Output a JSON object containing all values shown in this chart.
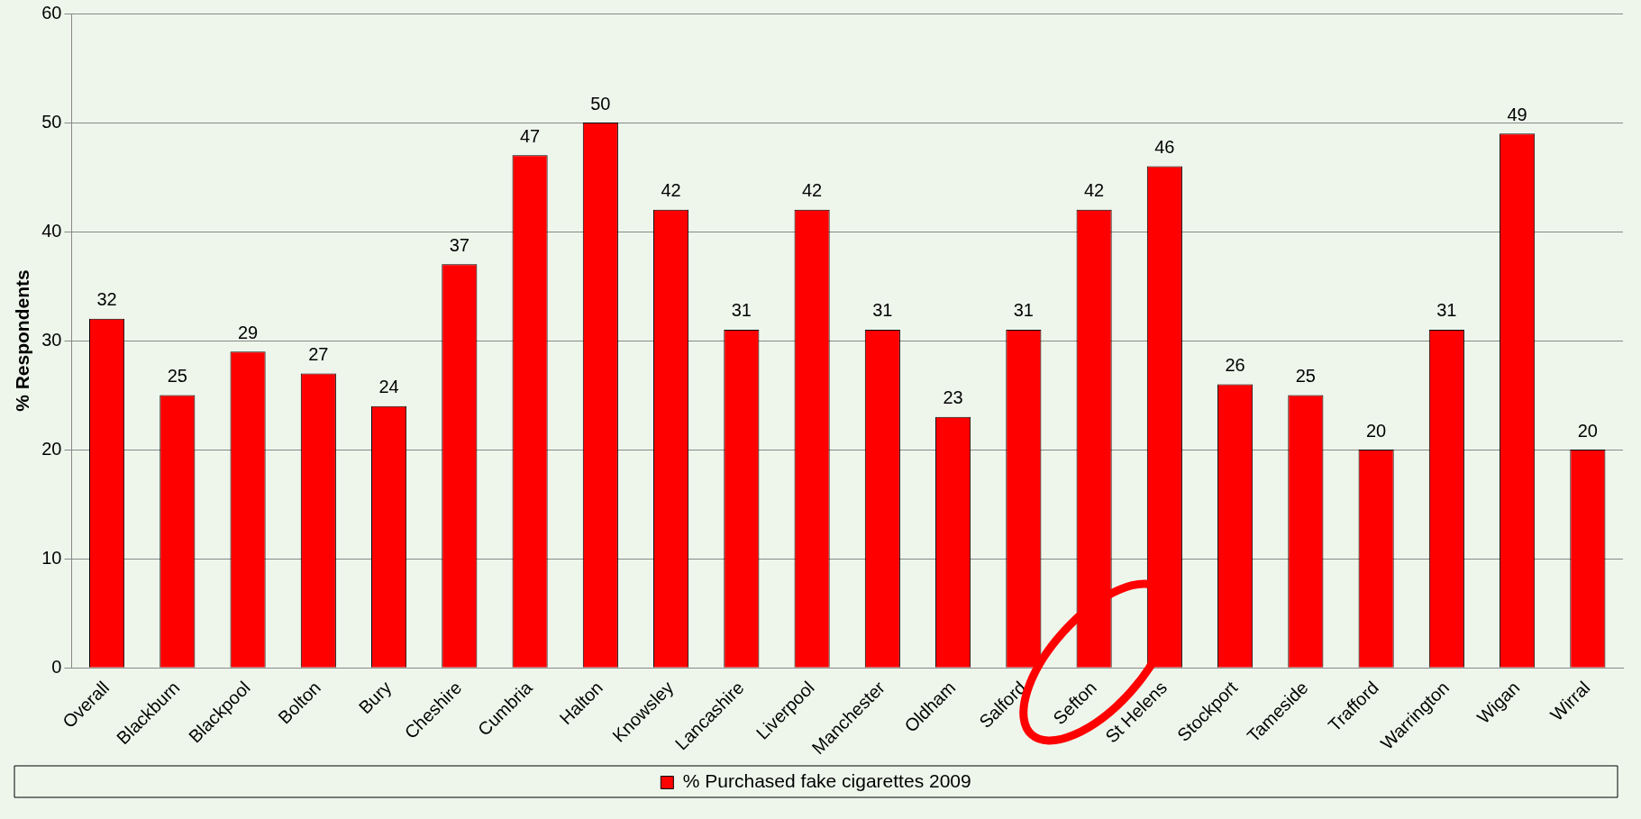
{
  "chart_data": {
    "type": "bar",
    "ylabel": "% Respondents",
    "categories": [
      "Overall",
      "Blackburn",
      "Blackpool",
      "Bolton",
      "Bury",
      "Cheshire",
      "Cumbria",
      "Halton",
      "Knowsley",
      "Lancashire",
      "Liverpool",
      "Manchester",
      "Oldham",
      "Salford",
      "Sefton",
      "St Helens",
      "Stockport",
      "Tameside",
      "Trafford",
      "Warrington",
      "Wigan",
      "Wirral"
    ],
    "series": [
      {
        "name": "% Purchased fake cigarettes 2009",
        "color": "#ff0000",
        "values": [
          32,
          25,
          29,
          27,
          24,
          37,
          47,
          50,
          42,
          31,
          42,
          31,
          23,
          31,
          42,
          46,
          26,
          25,
          20,
          31,
          49,
          20
        ]
      }
    ],
    "ylim": [
      0,
      60
    ],
    "yticks": [
      0,
      10,
      20,
      30,
      40,
      50,
      60
    ],
    "grid": "y",
    "legend": "bottom",
    "data_labels": true
  }
}
